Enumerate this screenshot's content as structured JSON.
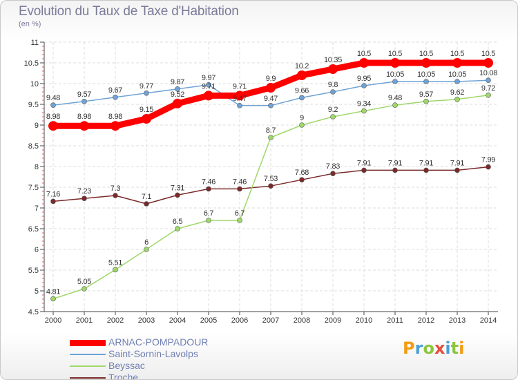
{
  "header": {
    "title": "Evolution du Taux de Taxe d'Habitation",
    "subtitle": "(en %)"
  },
  "logo": {
    "letters": [
      "P",
      "r",
      "o",
      "x",
      "i",
      "t",
      "i"
    ]
  },
  "chart_data": {
    "type": "line",
    "title": "Evolution du Taux de Taxe d'Habitation",
    "subtitle": "(en %)",
    "xlabel": "",
    "ylabel": "",
    "x": [
      2000,
      2001,
      2002,
      2003,
      2004,
      2005,
      2006,
      2007,
      2008,
      2009,
      2010,
      2011,
      2012,
      2013,
      2014
    ],
    "ylim": [
      4.5,
      11
    ],
    "yticks": [
      "4.5",
      "5",
      "5.5",
      "6",
      "6.5",
      "7",
      "7.5",
      "8",
      "8.5",
      "9",
      "9.5",
      "10",
      "10.5",
      "11"
    ],
    "grid": true,
    "legend_position": "bottom-left",
    "series": [
      {
        "name": "ARNAC-POMPADOUR",
        "color": "#ff0000",
        "thick": true,
        "values": [
          8.98,
          8.98,
          8.98,
          9.15,
          9.52,
          9.71,
          9.71,
          9.9,
          10.2,
          10.35,
          10.5,
          10.5,
          10.5,
          10.5,
          10.5
        ],
        "labels": [
          "8.98",
          "8.98",
          "8.98",
          "9.15",
          "9.52",
          "9.71",
          "9.71",
          "9.9",
          "10.2",
          "10.35",
          "10.5",
          "10.5",
          "10.5",
          "10.5",
          "10.5"
        ]
      },
      {
        "name": "Saint-Sornin-Lavolps",
        "color": "#6fa3d6",
        "thick": false,
        "values": [
          9.48,
          9.57,
          9.67,
          9.77,
          9.87,
          9.97,
          9.47,
          9.47,
          9.66,
          9.8,
          9.95,
          10.05,
          10.05,
          10.05,
          10.08
        ],
        "labels": [
          "9.48",
          "9.57",
          "9.67",
          "9.77",
          "9.87",
          "9.97",
          "9.47",
          "9.47",
          "9.66",
          "9.8",
          "9.95",
          "10.05",
          "10.05",
          "10.05",
          "10.08"
        ]
      },
      {
        "name": "Beyssac",
        "color": "#9fd86a",
        "thick": false,
        "values": [
          4.81,
          5.05,
          5.51,
          6,
          6.5,
          6.7,
          6.7,
          8.7,
          9,
          9.2,
          9.34,
          9.48,
          9.57,
          9.62,
          9.72
        ],
        "labels": [
          "4.81",
          "5.05",
          "5.51",
          "6",
          "6.5",
          "6.7",
          "6.7",
          "8.7",
          "9",
          "9.2",
          "9.34",
          "9.48",
          "9.57",
          "9.62",
          "9.72"
        ]
      },
      {
        "name": "Troche",
        "color": "#7a2a2a",
        "thick": false,
        "values": [
          7.16,
          7.23,
          7.3,
          7.1,
          7.31,
          7.46,
          7.46,
          7.53,
          7.68,
          7.83,
          7.91,
          7.91,
          7.91,
          7.91,
          7.99
        ],
        "labels": [
          "7.16",
          "7.23",
          "7.3",
          "7.1",
          "7.31",
          "7.46",
          "7.46",
          "7.53",
          "7.68",
          "7.83",
          "7.91",
          "7.91",
          "7.91",
          "7.91",
          "7.99"
        ]
      }
    ]
  }
}
